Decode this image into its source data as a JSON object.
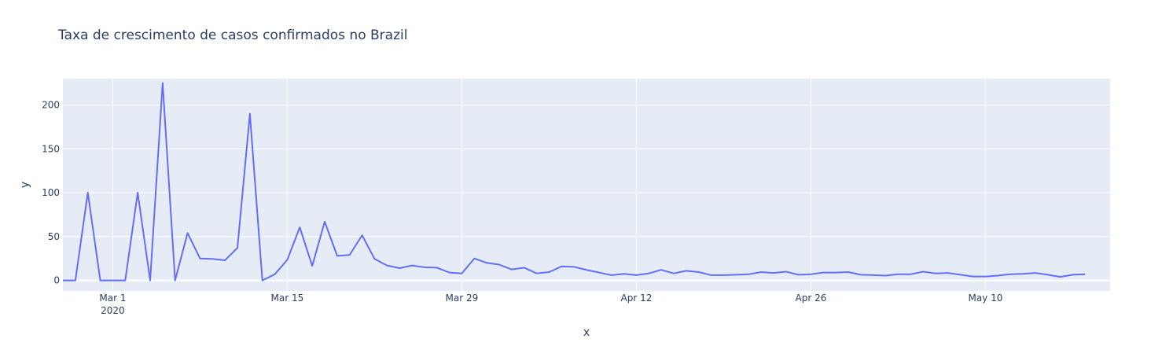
{
  "chart_data": {
    "type": "line",
    "title": "Taxa de crescimento de casos confirmados no Brazil",
    "xlabel": "x",
    "ylabel": "y",
    "x_start": "2020-02-26",
    "x_end": "2020-05-20",
    "xlim": [
      "2020-02-26",
      "2020-05-20"
    ],
    "ylim": [
      -12,
      230
    ],
    "x_ticks": [
      {
        "date": "2020-03-01",
        "label": "Mar 1",
        "sublabel": "2020"
      },
      {
        "date": "2020-03-15",
        "label": "Mar 15",
        "sublabel": ""
      },
      {
        "date": "2020-03-29",
        "label": "Mar 29",
        "sublabel": ""
      },
      {
        "date": "2020-04-12",
        "label": "Apr 12",
        "sublabel": ""
      },
      {
        "date": "2020-04-26",
        "label": "Apr 26",
        "sublabel": ""
      },
      {
        "date": "2020-05-10",
        "label": "May 10",
        "sublabel": ""
      }
    ],
    "y_ticks": [
      {
        "value": 0,
        "label": "0"
      },
      {
        "value": 50,
        "label": "50"
      },
      {
        "value": 100,
        "label": "100"
      },
      {
        "value": 150,
        "label": "150"
      },
      {
        "value": 200,
        "label": "200"
      }
    ],
    "series": [
      {
        "name": "",
        "color": "#636efa",
        "y": [
          0,
          0,
          100,
          0,
          0,
          0,
          100,
          0,
          225,
          0,
          54,
          25,
          24.5,
          23,
          37,
          190,
          0,
          7,
          23.5,
          60.5,
          16.5,
          67,
          28,
          29,
          51.5,
          24.5,
          17,
          14,
          17,
          15,
          14.5,
          9,
          8,
          25,
          20,
          18,
          12.5,
          14.5,
          8,
          9.5,
          16,
          15.5,
          12,
          9,
          6,
          7.5,
          6,
          8,
          12,
          8,
          11,
          9.5,
          6,
          6,
          6.5,
          7,
          9.5,
          8.5,
          10,
          6.5,
          7,
          9,
          9,
          9.5,
          6.5,
          6,
          5.5,
          7,
          7,
          10,
          8,
          8.5,
          6.5,
          4.5,
          4.5,
          5.5,
          7,
          7.5,
          8.5,
          6.5,
          4,
          6.5,
          7
        ]
      }
    ],
    "grid": true,
    "legend": "none",
    "colors": {
      "plot_bg": "#e5ecf6",
      "grid": "#ffffff",
      "text": "#2a3f5f",
      "line": "#636efa"
    }
  }
}
